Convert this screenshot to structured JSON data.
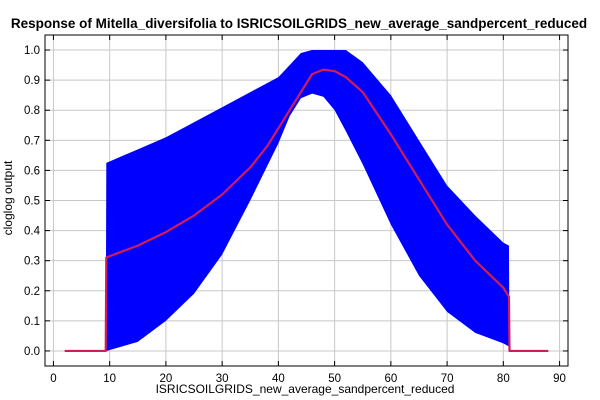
{
  "chart_data": {
    "type": "line",
    "title": "Response of Mitella_diversifolia to ISRICSOILGRIDS_new_average_sandpercent_reduced",
    "xlabel": "ISRICSOILGRIDS_new_average_sandpercent_reduced",
    "ylabel": "cloglog output",
    "xlim": [
      -1.5,
      91.5
    ],
    "ylim": [
      -0.05,
      1.05
    ],
    "x_ticks": [
      0,
      10,
      20,
      30,
      40,
      50,
      60,
      70,
      80,
      90
    ],
    "y_ticks": [
      0.0,
      0.1,
      0.2,
      0.3,
      0.4,
      0.5,
      0.6,
      0.7,
      0.8,
      0.9,
      1.0
    ],
    "x_tick_labels": [
      "0",
      "10",
      "20",
      "30",
      "40",
      "50",
      "60",
      "70",
      "80",
      "90"
    ],
    "y_tick_labels": [
      "0.0",
      "0.1",
      "0.2",
      "0.3",
      "0.4",
      "0.5",
      "0.6",
      "0.7",
      "0.8",
      "0.9",
      "1.0"
    ],
    "grid": true,
    "colors": {
      "band": "#0000ff",
      "line": "#d01c5a"
    },
    "series": [
      {
        "x": [
          2,
          9.3,
          9.4,
          10,
          15,
          20,
          25,
          30,
          35,
          38,
          40,
          42,
          44,
          46,
          48,
          50,
          52,
          55,
          60,
          65,
          70,
          75,
          80,
          81,
          81.1,
          82,
          88
        ],
        "values": [
          0.0,
          0.0,
          0.31,
          0.315,
          0.35,
          0.395,
          0.45,
          0.52,
          0.61,
          0.68,
          0.74,
          0.8,
          0.86,
          0.92,
          0.935,
          0.93,
          0.91,
          0.86,
          0.72,
          0.57,
          0.42,
          0.3,
          0.21,
          0.18,
          0.0,
          0.0,
          0.0
        ]
      },
      {
        "x": [
          9.3,
          9.4,
          15,
          20,
          25,
          30,
          35,
          40,
          42,
          44,
          46,
          48,
          50,
          52,
          55,
          60,
          65,
          70,
          75,
          80,
          81,
          81.1
        ],
        "upper": [
          0.0,
          0.625,
          0.67,
          0.71,
          0.76,
          0.81,
          0.86,
          0.91,
          0.95,
          0.99,
          1.0,
          1.0,
          1.0,
          1.0,
          0.96,
          0.85,
          0.7,
          0.55,
          0.45,
          0.36,
          0.35,
          0.0
        ],
        "lower": [
          0.0,
          0.0,
          0.03,
          0.1,
          0.19,
          0.32,
          0.5,
          0.69,
          0.78,
          0.84,
          0.855,
          0.845,
          0.8,
          0.73,
          0.62,
          0.42,
          0.25,
          0.13,
          0.06,
          0.025,
          0.015,
          0.0
        ]
      }
    ]
  }
}
